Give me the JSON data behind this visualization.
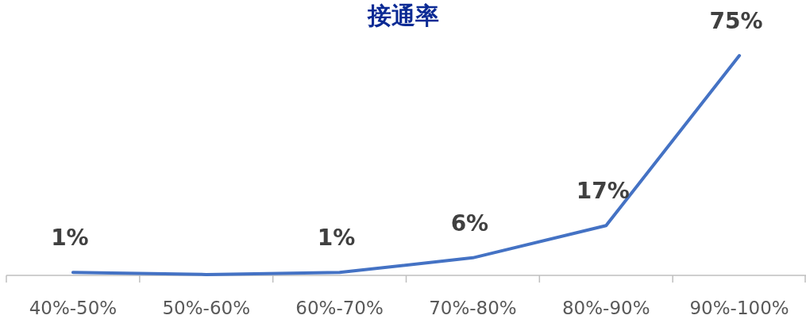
{
  "chart_data": {
    "type": "line",
    "title": "接通率",
    "categories": [
      "40%-50%",
      "50%-60%",
      "60%-70%",
      "70%-80%",
      "80%-90%",
      "90%-100%"
    ],
    "series": [
      {
        "color": "#4472c4",
        "values": [
          1,
          0.3,
          1,
          6,
          17,
          75
        ],
        "value_labels": [
          "1%",
          null,
          "1%",
          "6%",
          "17%",
          "75%"
        ]
      }
    ],
    "marker": "none"
  }
}
